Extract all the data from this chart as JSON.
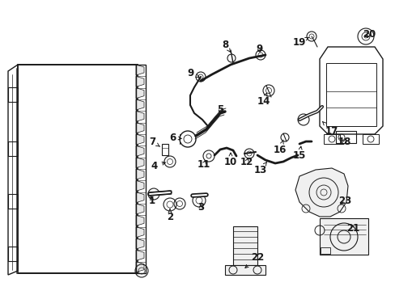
{
  "bg_color": "#ffffff",
  "line_color": "#1a1a1a",
  "figsize": [
    4.89,
    3.6
  ],
  "dpi": 100,
  "labels": [
    [
      "1",
      208,
      248,
      192,
      240,
      "right"
    ],
    [
      "2",
      218,
      265,
      210,
      252,
      "right"
    ],
    [
      "3",
      248,
      248,
      240,
      242,
      "left"
    ],
    [
      "4",
      200,
      195,
      208,
      200,
      "right"
    ],
    [
      "5",
      270,
      138,
      275,
      148,
      "center"
    ],
    [
      "6",
      222,
      165,
      232,
      172,
      "left"
    ],
    [
      "7",
      198,
      172,
      205,
      183,
      "right"
    ],
    [
      "8",
      282,
      57,
      287,
      67,
      "center"
    ],
    [
      "9",
      248,
      88,
      256,
      95,
      "right"
    ],
    [
      "9",
      322,
      62,
      328,
      70,
      "left"
    ],
    [
      "10",
      294,
      195,
      290,
      185,
      "center"
    ],
    [
      "11",
      256,
      200,
      258,
      190,
      "center"
    ],
    [
      "12",
      310,
      195,
      306,
      185,
      "center"
    ],
    [
      "13",
      322,
      205,
      325,
      195,
      "center"
    ],
    [
      "14",
      332,
      120,
      330,
      108,
      "center"
    ],
    [
      "15",
      374,
      188,
      370,
      178,
      "center"
    ],
    [
      "16",
      352,
      182,
      350,
      172,
      "center"
    ],
    [
      "17",
      406,
      158,
      408,
      148,
      "left"
    ],
    [
      "18",
      420,
      172,
      430,
      165,
      "left"
    ],
    [
      "19",
      384,
      52,
      394,
      58,
      "left"
    ],
    [
      "20",
      450,
      45,
      455,
      50,
      "left"
    ],
    [
      "21",
      430,
      278,
      436,
      272,
      "left"
    ],
    [
      "22",
      314,
      315,
      306,
      308,
      "left"
    ],
    [
      "23",
      420,
      245,
      426,
      238,
      "left"
    ]
  ]
}
